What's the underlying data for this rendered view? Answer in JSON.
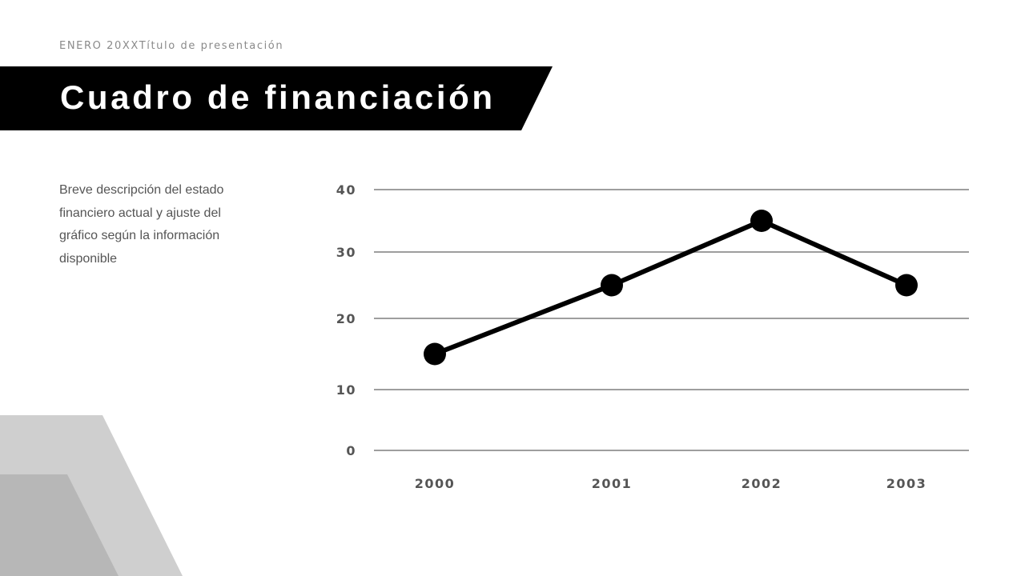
{
  "header": {
    "kicker_date": "ENERO 20XX",
    "kicker_title": "Título de presentación",
    "title": "Cuadro de financiación"
  },
  "description": "Breve descripción del estado financiero actual y ajuste del gráfico según la información disponible",
  "colors": {
    "banner": "#000000",
    "line": "#000000",
    "grid": "#9e9e9e",
    "deco_light": "#cfcfcf",
    "deco_dark": "#b7b7b7"
  },
  "chart_data": {
    "type": "line",
    "categories": [
      "2000",
      "2001",
      "2002",
      "2003"
    ],
    "values": [
      15,
      25,
      35,
      25
    ],
    "y_ticks": [
      "0",
      "10",
      "20",
      "30",
      "40"
    ],
    "ylim": [
      0,
      40
    ],
    "grid": true,
    "legend": "none",
    "markers": true
  }
}
